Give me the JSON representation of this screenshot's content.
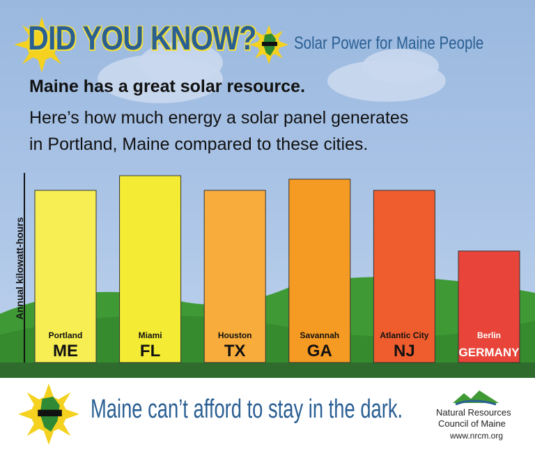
{
  "header": {
    "headline": "DID YOU KNOW?",
    "brand": "Solar Power for Maine People",
    "subtitle_bold": "Maine has a great solar resource.",
    "subtitle_line1": "Here’s how much energy a solar panel generates",
    "subtitle_line2": "in Portland, Maine compared to these cities."
  },
  "chart_data": {
    "type": "bar",
    "ylabel": "Annual kilowatt-hours",
    "categories": [
      {
        "city": "Portland",
        "state": "ME"
      },
      {
        "city": "Miami",
        "state": "FL"
      },
      {
        "city": "Houston",
        "state": "TX"
      },
      {
        "city": "Savannah",
        "state": "GA"
      },
      {
        "city": "Atlantic City",
        "state": "NJ"
      },
      {
        "city": "Berlin",
        "state": "GERMANY"
      }
    ],
    "values": [
      247,
      268,
      247,
      263,
      247,
      160
    ],
    "ylim": [
      0,
      272
    ],
    "bar_colors": [
      "#f6ee52",
      "#f4ec34",
      "#f7ac3c",
      "#f59a23",
      "#ef5d2e",
      "#e84439"
    ],
    "grid": false
  },
  "footer": {
    "tagline": "Maine can’t afford to stay in the dark.",
    "org_line1": "Natural Resources",
    "org_line2": "Council of Maine",
    "website": "www.nrcm.org"
  },
  "icons": [
    "sun-maine-icon",
    "sunglasses-icon",
    "nrcm-logo-icon"
  ]
}
